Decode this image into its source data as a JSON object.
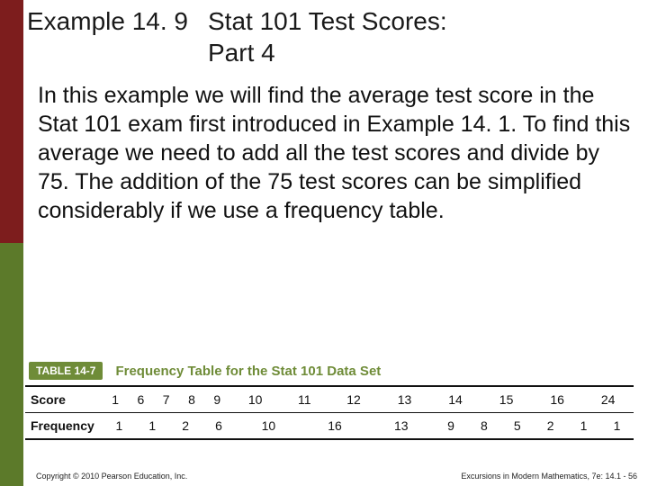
{
  "sidebar": {
    "top_color": "#7d1d1d",
    "bottom_color": "#5c7a2a",
    "split_ratio": 0.5
  },
  "header": {
    "example_label": "Example 14. 9",
    "title_line1": "Stat 101 Test Scores:",
    "title_line2": "Part 4"
  },
  "body": {
    "paragraph": "In this example we will find the average test score in the Stat 101 exam first introduced in Example 14. 1. To find this average we need to add all the test scores and divide by 75. The addition of the 75 test scores can be simplified considerably if we use a frequency table."
  },
  "table": {
    "badge": "TABLE 14-7",
    "caption": "Frequency Table for the Stat 101 Data Set",
    "row_labels": [
      "Score",
      "Frequency"
    ],
    "columns": [
      "1",
      "6",
      "7",
      "8",
      "9",
      "10",
      "11",
      "12",
      "13",
      "14",
      "15",
      "16",
      "24"
    ],
    "rows": [
      [
        "1",
        "6",
        "7",
        "8",
        "9",
        "10",
        "11",
        "12",
        "13",
        "14",
        "15",
        "16",
        "24"
      ],
      [
        "1",
        "1",
        "2",
        "6",
        "10",
        "16",
        "13",
        "9",
        "8",
        "5",
        "2",
        "1",
        "1"
      ]
    ],
    "badge_bg": "#6f8c38",
    "badge_fg": "#ffffff",
    "caption_color": "#6f8c38"
  },
  "footer": {
    "left": "Copyright © 2010 Pearson Education, Inc.",
    "right": "Excursions in Modern Mathematics, 7e: 14.1 - 56"
  }
}
